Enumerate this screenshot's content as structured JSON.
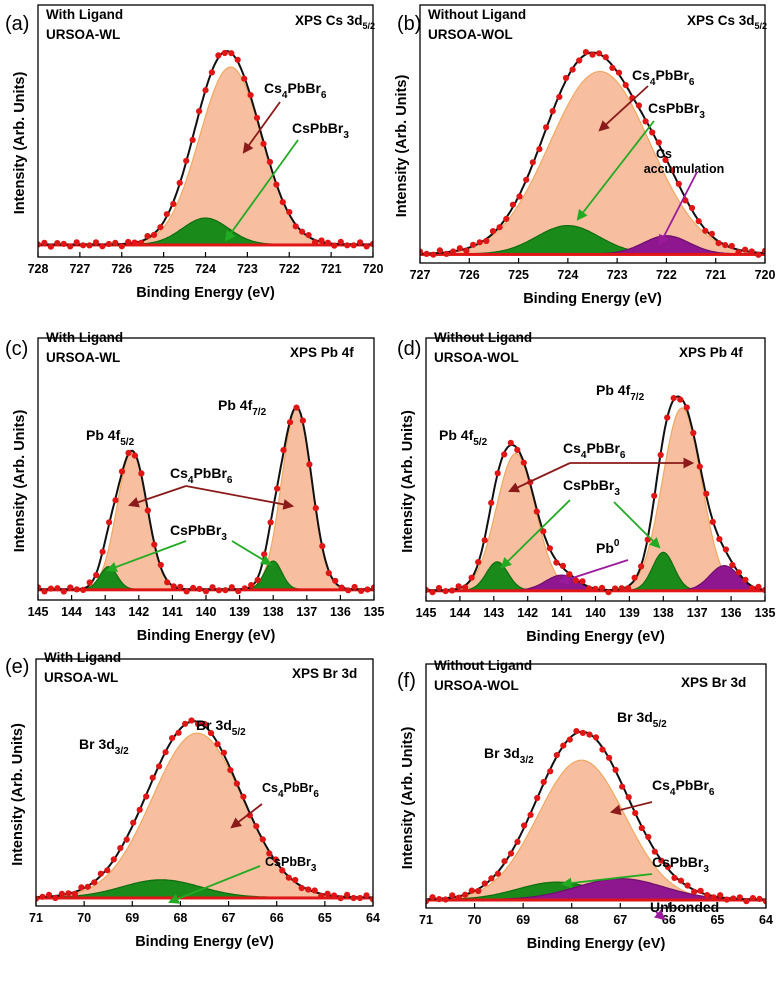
{
  "chart_data": [
    {
      "panel": "(a)",
      "type": "line",
      "sample": "With Ligand",
      "sample_id": "URSOA-WL",
      "spectrum_prefix": "XPS Cs 3d",
      "spectrum_sub": "5/2",
      "xlabel": "Binding Energy (eV)",
      "ylabel": "Intensity (Arb. Units)",
      "xlim": [
        728,
        720
      ],
      "xreversed": true,
      "xticks": [
        728,
        727,
        726,
        725,
        724,
        723,
        722,
        721,
        720
      ],
      "ylim": [
        0,
        1.15
      ],
      "baseline": 0.04,
      "peaks": [
        {
          "name": "Cs4PbBr6",
          "center": 723.4,
          "height": 0.94,
          "fwhm": 1.75,
          "color": "#f6b896",
          "edge": "#f0a860"
        },
        {
          "name": "CsPbBr3",
          "center": 724.0,
          "height": 0.14,
          "fwhm": 1.3,
          "color": "#1a8a1a",
          "edge": "#0f6d0f"
        }
      ],
      "annotations": [
        {
          "base": "Cs",
          "sub1": "4",
          "mid": "PbBr",
          "sub2": "6",
          "arrow_color": "#8b1a1a"
        },
        {
          "base": "CsPbBr",
          "sub1": "3",
          "mid": "",
          "sub2": "",
          "arrow_color": "#22aa22"
        }
      ]
    },
    {
      "panel": "(b)",
      "type": "line",
      "sample": "Without Ligand",
      "sample_id": "URSOA-WOL",
      "spectrum_prefix": "XPS Cs 3d",
      "spectrum_sub": "5/2",
      "xlabel": "Binding Energy (eV)",
      "ylabel": "Intensity (Arb. Units)",
      "xlim": [
        727,
        720
      ],
      "xreversed": true,
      "xticks": [
        727,
        726,
        725,
        724,
        723,
        722,
        721,
        720
      ],
      "ylim": [
        0,
        1.1
      ],
      "baseline": 0.02,
      "peaks": [
        {
          "name": "Cs4PbBr6",
          "center": 723.35,
          "height": 0.9,
          "fwhm": 2.4,
          "color": "#f6b896",
          "edge": "#f0a860"
        },
        {
          "name": "CsPbBr3",
          "center": 724.0,
          "height": 0.14,
          "fwhm": 1.5,
          "color": "#1a8a1a",
          "edge": "#0f6d0f"
        },
        {
          "name": "Cs accumulation",
          "center": 722.0,
          "height": 0.09,
          "fwhm": 1.1,
          "color": "#8e168e",
          "edge": "#6d0f6d"
        }
      ],
      "annotations": [
        {
          "base": "Cs",
          "sub1": "4",
          "mid": "PbBr",
          "sub2": "6",
          "arrow_color": "#8b1a1a"
        },
        {
          "base": "CsPbBr",
          "sub1": "3",
          "mid": "",
          "sub2": "",
          "arrow_color": "#22aa22"
        },
        {
          "line1": "Cs",
          "line2": "accumulation",
          "arrow_color": "#9b1a9b"
        }
      ]
    },
    {
      "panel": "(c)",
      "type": "line",
      "sample": "With Ligand",
      "sample_id": "URSOA-WL",
      "spectrum_prefix": "XPS Pb 4f",
      "spectrum_sub": "",
      "xlabel": "Binding Energy (eV)",
      "ylabel": "Intensity (Arb. Units)",
      "xlim": [
        145,
        135
      ],
      "xreversed": true,
      "xticks": [
        145,
        144,
        143,
        142,
        141,
        140,
        139,
        138,
        137,
        136,
        135
      ],
      "ylim": [
        0,
        1.2
      ],
      "baseline": 0.03,
      "peaks": [
        {
          "name": "Cs4PbBr6",
          "center": 142.2,
          "height": 0.73,
          "fwhm": 1.05,
          "color": "#f6b896",
          "edge": "#f0a860"
        },
        {
          "name": "Cs4PbBr6",
          "center": 137.3,
          "height": 0.96,
          "fwhm": 1.05,
          "color": "#f6b896",
          "edge": "#f0a860"
        },
        {
          "name": "CsPbBr3",
          "center": 142.9,
          "height": 0.12,
          "fwhm": 0.6,
          "color": "#1a8a1a",
          "edge": "#0f6d0f"
        },
        {
          "name": "CsPbBr3",
          "center": 138.0,
          "height": 0.15,
          "fwhm": 0.6,
          "color": "#1a8a1a",
          "edge": "#0f6d0f"
        }
      ],
      "peak_labels": [
        {
          "base": "Pb 4f",
          "sub": "5/2"
        },
        {
          "base": "Pb 4f",
          "sub": "7/2"
        }
      ],
      "annotations": [
        {
          "base": "Cs",
          "sub1": "4",
          "mid": "PbBr",
          "sub2": "6",
          "arrow_color": "#8b1a1a"
        },
        {
          "base": "CsPbBr",
          "sub1": "3",
          "mid": "",
          "sub2": "",
          "arrow_color": "#22aa22"
        }
      ]
    },
    {
      "panel": "(d)",
      "type": "line",
      "sample": "Without Ligand",
      "sample_id": "URSOA-WOL",
      "spectrum_prefix": "XPS Pb 4f",
      "spectrum_sub": "",
      "xlabel": "Binding Energy (eV)",
      "ylabel": "Intensity (Arb. Units)",
      "xlim": [
        145,
        135
      ],
      "xreversed": true,
      "xticks": [
        145,
        144,
        143,
        142,
        141,
        140,
        139,
        138,
        137,
        136,
        135
      ],
      "ylim": [
        0,
        1.2
      ],
      "baseline": 0.03,
      "peaks": [
        {
          "name": "Cs4PbBr6",
          "center": 142.35,
          "height": 0.72,
          "fwhm": 1.35,
          "color": "#f6b896",
          "edge": "#f0a860"
        },
        {
          "name": "Cs4PbBr6",
          "center": 137.45,
          "height": 0.96,
          "fwhm": 1.35,
          "color": "#f6b896",
          "edge": "#f0a860"
        },
        {
          "name": "CsPbBr3",
          "center": 142.9,
          "height": 0.15,
          "fwhm": 0.75,
          "color": "#1a8a1a",
          "edge": "#0f6d0f"
        },
        {
          "name": "CsPbBr3",
          "center": 138.0,
          "height": 0.2,
          "fwhm": 0.75,
          "color": "#1a8a1a",
          "edge": "#0f6d0f"
        },
        {
          "name": "Pb0",
          "center": 141.0,
          "height": 0.08,
          "fwhm": 1.1,
          "color": "#8e168e",
          "edge": "#6d0f6d"
        },
        {
          "name": "Pb0",
          "center": 136.2,
          "height": 0.13,
          "fwhm": 1.0,
          "color": "#8e168e",
          "edge": "#6d0f6d"
        }
      ],
      "peak_labels": [
        {
          "base": "Pb 4f",
          "sub": "5/2"
        },
        {
          "base": "Pb 4f",
          "sub": "7/2"
        }
      ],
      "annotations": [
        {
          "base": "Cs",
          "sub1": "4",
          "mid": "PbBr",
          "sub2": "6",
          "arrow_color": "#8b1a1a"
        },
        {
          "base": "CsPbBr",
          "sub1": "3",
          "mid": "",
          "sub2": "",
          "arrow_color": "#22aa22"
        },
        {
          "base": "Pb",
          "sup": "0",
          "arrow_color": "#9b1a9b"
        }
      ]
    },
    {
      "panel": "(e)",
      "type": "line",
      "sample": "With Ligand",
      "sample_id": "URSOA-WL",
      "spectrum_prefix": "XPS Br 3d",
      "spectrum_sub": "",
      "xlabel": "Binding Energy (eV)",
      "ylabel": "Intensity (Arb. Units)",
      "xlim": [
        71,
        64
      ],
      "xreversed": true,
      "xticks": [
        71,
        70,
        69,
        68,
        67,
        66,
        65,
        64
      ],
      "ylim": [
        0,
        1.2
      ],
      "baseline": 0.02,
      "peaks": [
        {
          "name": "Cs4PbBr6",
          "center": 67.65,
          "height": 0.93,
          "fwhm": 2.2,
          "color": "#f6b896",
          "edge": "#f0a860"
        },
        {
          "name": "CsPbBr3",
          "center": 68.4,
          "height": 0.1,
          "fwhm": 1.9,
          "color": "#1a8a1a",
          "edge": "#0f6d0f"
        }
      ],
      "peak_labels": [
        {
          "base": "Br 3d",
          "sub": "3/2"
        },
        {
          "base": "Br 3d",
          "sub": "5/2"
        }
      ],
      "annotations": [
        {
          "base": "Cs",
          "sub1": "4",
          "mid": "PbBr",
          "sub2": "6",
          "arrow_color": "#8b1a1a"
        },
        {
          "base": "CsPbBr",
          "sub1": "3",
          "mid": "",
          "sub2": "",
          "arrow_color": "#22aa22"
        }
      ]
    },
    {
      "panel": "(f)",
      "type": "line",
      "sample": "Without Ligand",
      "sample_id": "URSOA-WOL",
      "spectrum_prefix": "XPS Br 3d",
      "spectrum_sub": "",
      "xlabel": "Binding Energy (eV)",
      "ylabel": "Intensity (Arb. Units)",
      "xlim": [
        71,
        64
      ],
      "xreversed": true,
      "xticks": [
        71,
        70,
        69,
        68,
        67,
        66,
        65,
        64
      ],
      "ylim": [
        0,
        1.2
      ],
      "baseline": 0.02,
      "peaks": [
        {
          "name": "Cs4PbBr6",
          "center": 67.8,
          "height": 0.8,
          "fwhm": 2.1,
          "color": "#f6b896",
          "edge": "#f0a860"
        },
        {
          "name": "CsPbBr3",
          "center": 68.3,
          "height": 0.1,
          "fwhm": 1.9,
          "color": "#1a8a1a",
          "edge": "#0f6d0f"
        },
        {
          "name": "Unbonded",
          "center": 67.0,
          "height": 0.12,
          "fwhm": 2.1,
          "color": "#8e168e",
          "edge": "#6d0f6d"
        }
      ],
      "peak_labels": [
        {
          "base": "Br 3d",
          "sub": "3/2"
        },
        {
          "base": "Br 3d",
          "sub": "5/2"
        }
      ],
      "annotations": [
        {
          "base": "Cs",
          "sub1": "4",
          "mid": "PbBr",
          "sub2": "6",
          "arrow_color": "#8b1a1a"
        },
        {
          "base": "CsPbBr",
          "sub1": "3",
          "mid": "",
          "sub2": "",
          "arrow_color": "#22aa22"
        },
        {
          "base": "Unbonded",
          "arrow_color": "#9b1a9b"
        }
      ]
    }
  ],
  "colors": {
    "envelope": "#111111",
    "data_points": "#e01515",
    "baseline_band": "#e01515"
  }
}
